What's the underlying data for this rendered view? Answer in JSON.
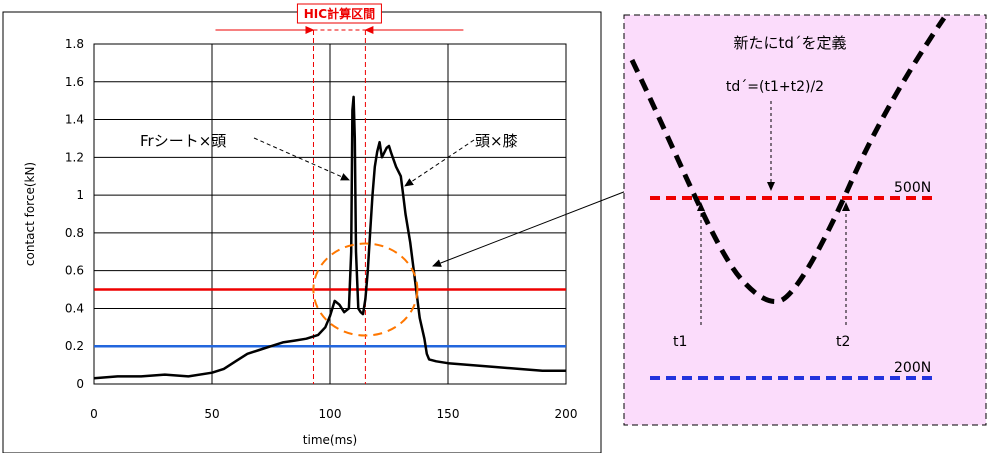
{
  "chart_data": {
    "type": "line",
    "xlabel": "time(ms)",
    "ylabel": "contact force(kN)",
    "xlim": [
      0,
      200
    ],
    "ylim": [
      0,
      1.8
    ],
    "xticks": [
      "0",
      "50",
      "100",
      "150",
      "200"
    ],
    "yticks": [
      "0",
      "0.2",
      "0.4",
      "0.6",
      "0.8",
      "1",
      "1.2",
      "1.4",
      "1.6",
      "1.8"
    ],
    "grid": true,
    "series": [
      {
        "color": "#000000",
        "x": [
          0,
          10,
          20,
          30,
          40,
          50,
          55,
          60,
          65,
          70,
          75,
          80,
          85,
          90,
          95,
          98,
          100,
          102,
          104,
          106,
          108,
          109,
          109.5,
          110,
          110.5,
          111,
          112,
          113,
          114,
          115,
          116,
          117,
          118,
          119,
          120,
          121,
          122,
          124,
          125,
          126,
          128,
          130,
          131,
          132,
          134,
          136,
          138,
          140,
          141,
          142,
          145,
          150,
          160,
          170,
          180,
          190,
          200
        ],
        "y": [
          0.03,
          0.04,
          0.04,
          0.05,
          0.04,
          0.06,
          0.08,
          0.12,
          0.16,
          0.18,
          0.2,
          0.22,
          0.23,
          0.24,
          0.26,
          0.3,
          0.36,
          0.44,
          0.42,
          0.38,
          0.4,
          0.7,
          1.45,
          1.52,
          1.3,
          0.7,
          0.4,
          0.38,
          0.37,
          0.45,
          0.6,
          0.8,
          1.0,
          1.15,
          1.23,
          1.28,
          1.2,
          1.25,
          1.26,
          1.22,
          1.15,
          1.1,
          1.0,
          0.9,
          0.75,
          0.55,
          0.35,
          0.24,
          0.16,
          0.13,
          0.12,
          0.11,
          0.1,
          0.09,
          0.08,
          0.07,
          0.07
        ]
      }
    ],
    "threshold_lines": [
      {
        "value": 0.5,
        "color": "#ee0000"
      },
      {
        "value": 0.2,
        "color": "#2266dd"
      }
    ],
    "hic_interval": {
      "label": "HIC計算区間",
      "start": 93,
      "end": 115,
      "color": "#ee0000"
    },
    "annotations": [
      {
        "text": "Frシート×頭",
        "x": 30,
        "y": 1.3
      },
      {
        "text": "頭×膝",
        "x": 163,
        "y": 1.3
      }
    ],
    "circle_center": [
      115,
      0.5
    ],
    "circle_color": "#ff7700"
  },
  "inset": {
    "title": "新たにtd´を定義",
    "formula": "td´=(t1+t2)/2",
    "label_500": "500N",
    "label_200": "200N",
    "label_t1": "t1",
    "label_t2": "t2",
    "background": "#fbdcfb"
  }
}
